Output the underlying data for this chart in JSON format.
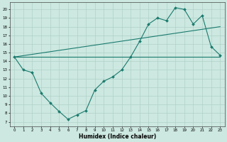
{
  "title": "",
  "xlabel": "Humidex (Indice chaleur)",
  "ylabel": "",
  "bg_color": "#cce8e0",
  "line_color": "#1a7a6e",
  "grid_color": "#aaccc4",
  "xlim": [
    -0.5,
    23.5
  ],
  "ylim": [
    6.5,
    20.8
  ],
  "xticks": [
    0,
    1,
    2,
    3,
    4,
    5,
    6,
    7,
    8,
    9,
    10,
    11,
    12,
    13,
    14,
    15,
    16,
    17,
    18,
    19,
    20,
    21,
    22,
    23
  ],
  "yticks": [
    7,
    8,
    9,
    10,
    11,
    12,
    13,
    14,
    15,
    16,
    17,
    18,
    19,
    20
  ],
  "series": [
    {
      "x": [
        0,
        1,
        2,
        3,
        4,
        5,
        6,
        7,
        8,
        9,
        10,
        11,
        12,
        13,
        14,
        15,
        16,
        17,
        18,
        19,
        20,
        21,
        22,
        23
      ],
      "y": [
        14.5,
        13.0,
        12.7,
        10.3,
        9.2,
        8.2,
        7.3,
        7.8,
        8.3,
        10.7,
        11.7,
        12.2,
        13.0,
        14.5,
        16.3,
        18.3,
        19.0,
        18.7,
        20.2,
        20.0,
        18.3,
        19.3,
        15.7,
        14.7
      ],
      "marker": "D",
      "markersize": 2.0,
      "linewidth": 0.8
    },
    {
      "x": [
        0,
        23
      ],
      "y": [
        14.5,
        14.5
      ],
      "marker": null,
      "markersize": 0,
      "linewidth": 0.8
    },
    {
      "x": [
        0,
        23
      ],
      "y": [
        14.5,
        18.0
      ],
      "marker": null,
      "markersize": 0,
      "linewidth": 0.8
    }
  ]
}
